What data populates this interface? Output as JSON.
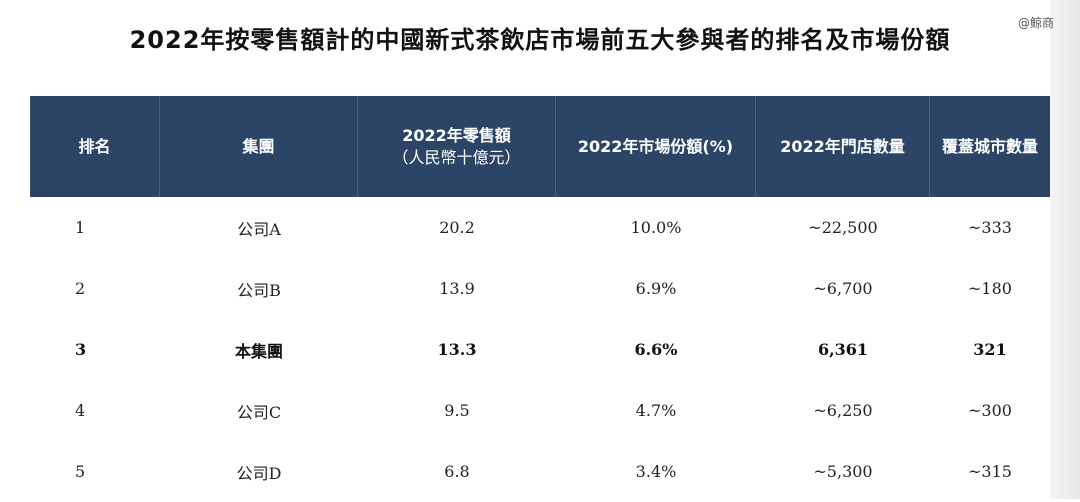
{
  "title": "2022年按零售額計的中國新式茶飲店市場前五大參與者的排名及市場份額",
  "watermark": "@鲸商",
  "table": {
    "headers": {
      "rank": "排名",
      "group": "集團",
      "retail_sales_line1": "2022年零售額",
      "retail_sales_line2": "（人民幣十億元）",
      "market_share": "2022年市場份額(%)",
      "store_count": "2022年門店數量",
      "city_count": "覆蓋城市數量"
    },
    "rows": [
      {
        "rank": "1",
        "group": "公司A",
        "retail_sales": "20.2",
        "market_share": "10.0%",
        "store_count": "~22,500",
        "city_count": "~333"
      },
      {
        "rank": "2",
        "group": "公司B",
        "retail_sales": "13.9",
        "market_share": "6.9%",
        "store_count": "~6,700",
        "city_count": "~180"
      },
      {
        "rank": "3",
        "group": "本集團",
        "retail_sales": "13.3",
        "market_share": "6.6%",
        "store_count": "6,361",
        "city_count": "321"
      },
      {
        "rank": "4",
        "group": "公司C",
        "retail_sales": "9.5",
        "market_share": "4.7%",
        "store_count": "~6,250",
        "city_count": "~300"
      },
      {
        "rank": "5",
        "group": "公司D",
        "retail_sales": "6.8",
        "market_share": "3.4%",
        "store_count": "~5,300",
        "city_count": "~315"
      }
    ]
  },
  "colors": {
    "header_bg": "#2c4566",
    "header_text": "#ffffff"
  }
}
